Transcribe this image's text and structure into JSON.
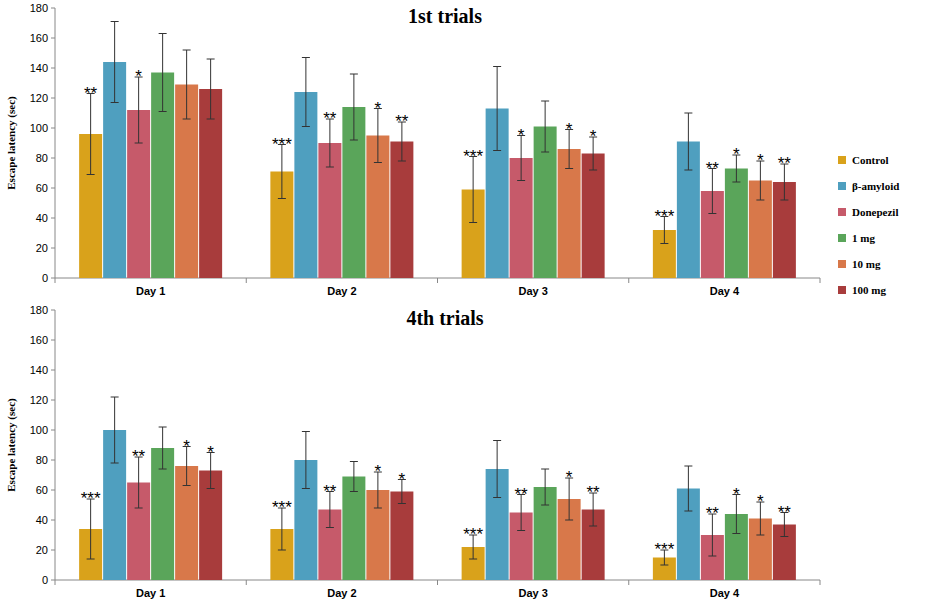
{
  "chart_data": [
    {
      "type": "bar",
      "title": "1st trials",
      "y_label": "Escape latency (sec)",
      "categories": [
        "Day 1",
        "Day 2",
        "Day 3",
        "Day 4"
      ],
      "ylim": [
        0,
        180
      ],
      "yticks": [
        0,
        20,
        40,
        60,
        80,
        100,
        120,
        140,
        160,
        180
      ],
      "grid": false,
      "legend": "right",
      "series": [
        {
          "name": "Control",
          "color": "#d9a21b",
          "values": [
            96,
            71,
            59,
            32
          ],
          "errors": [
            27,
            18,
            22,
            9
          ],
          "stars": [
            "**",
            "***",
            "***",
            "***"
          ]
        },
        {
          "name": "β-amyloid",
          "color": "#4f9fbf",
          "values": [
            144,
            124,
            113,
            91
          ],
          "errors": [
            27,
            23,
            28,
            19
          ],
          "stars": [
            null,
            null,
            null,
            null
          ]
        },
        {
          "name": "Donepezil",
          "color": "#c65a6a",
          "values": [
            112,
            90,
            80,
            58
          ],
          "errors": [
            22,
            16,
            15,
            15
          ],
          "stars": [
            "*",
            "**",
            "*",
            "**"
          ]
        },
        {
          "name": "1 mg",
          "color": "#5aa55a",
          "values": [
            137,
            114,
            101,
            73
          ],
          "errors": [
            26,
            22,
            17,
            9
          ],
          "stars": [
            null,
            null,
            null,
            "*"
          ]
        },
        {
          "name": "10 mg",
          "color": "#d8784a",
          "values": [
            129,
            95,
            86,
            65
          ],
          "errors": [
            23,
            18,
            13,
            13
          ],
          "stars": [
            null,
            "*",
            "*",
            "*"
          ]
        },
        {
          "name": "100 mg",
          "color": "#a83c3c",
          "values": [
            126,
            91,
            83,
            64
          ],
          "errors": [
            20,
            13,
            11,
            12
          ],
          "stars": [
            null,
            "**",
            "*",
            "**"
          ]
        }
      ]
    },
    {
      "type": "bar",
      "title": "4th trials",
      "y_label": "Escape latency (sec)",
      "categories": [
        "Day 1",
        "Day 2",
        "Day 3",
        "Day 4"
      ],
      "ylim": [
        0,
        180
      ],
      "yticks": [
        0,
        20,
        40,
        60,
        80,
        100,
        120,
        140,
        160,
        180
      ],
      "grid": false,
      "series": [
        {
          "color": "#d9a21b",
          "values": [
            34,
            34,
            22,
            15
          ],
          "errors": [
            20,
            14,
            8,
            5
          ],
          "stars": [
            "***",
            "***",
            "***",
            "***"
          ]
        },
        {
          "color": "#4f9fbf",
          "values": [
            100,
            80,
            74,
            61
          ],
          "errors": [
            22,
            19,
            19,
            15
          ],
          "stars": [
            null,
            null,
            null,
            null
          ]
        },
        {
          "color": "#c65a6a",
          "values": [
            65,
            47,
            45,
            30
          ],
          "errors": [
            17,
            12,
            12,
            14
          ],
          "stars": [
            "**",
            "**",
            "**",
            "**"
          ]
        },
        {
          "color": "#5aa55a",
          "values": [
            88,
            69,
            62,
            44
          ],
          "errors": [
            14,
            10,
            12,
            13
          ],
          "stars": [
            null,
            null,
            null,
            "*"
          ]
        },
        {
          "color": "#d8784a",
          "values": [
            76,
            60,
            54,
            41
          ],
          "errors": [
            13,
            12,
            14,
            11
          ],
          "stars": [
            "*",
            "*",
            "*",
            "*"
          ]
        },
        {
          "color": "#a83c3c",
          "values": [
            73,
            59,
            47,
            37
          ],
          "errors": [
            12,
            8,
            11,
            8
          ],
          "stars": [
            "*",
            "*",
            "**",
            "**"
          ]
        }
      ]
    }
  ]
}
